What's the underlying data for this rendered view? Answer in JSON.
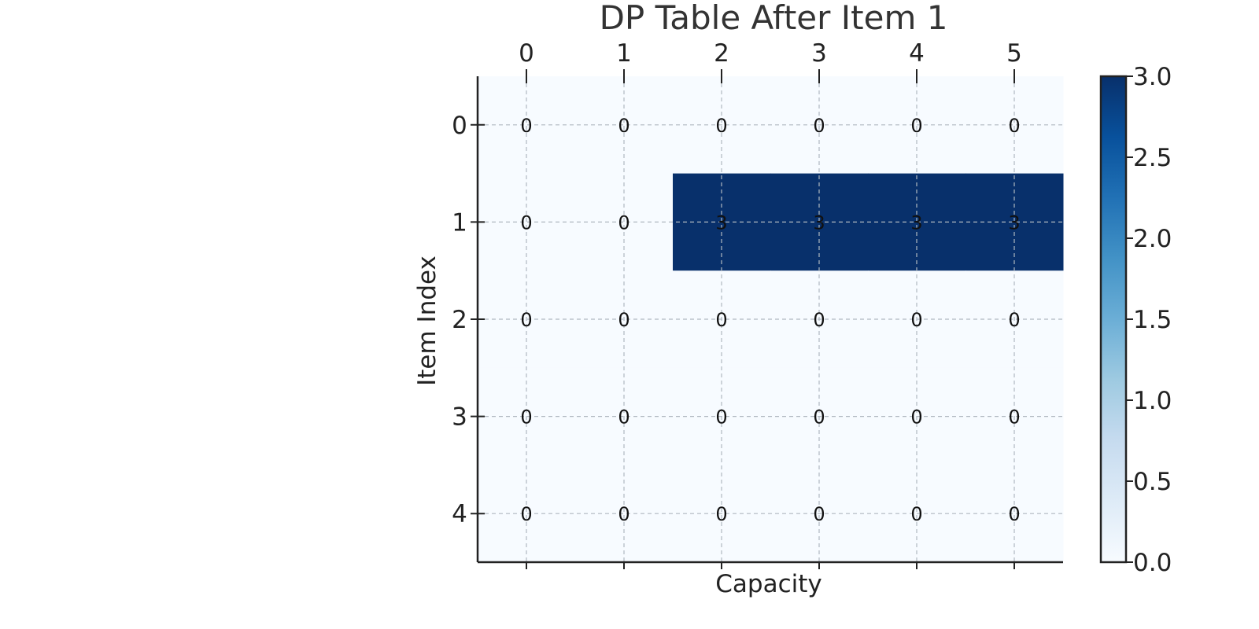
{
  "chart_data": {
    "type": "heatmap",
    "title": "DP Table After Item 1",
    "xlabel": "Capacity",
    "ylabel": "Item Index",
    "x_categories": [
      "0",
      "1",
      "2",
      "3",
      "4",
      "5"
    ],
    "y_categories": [
      "0",
      "1",
      "2",
      "3",
      "4"
    ],
    "values": [
      [
        0,
        0,
        0,
        0,
        0,
        0
      ],
      [
        0,
        0,
        3,
        3,
        3,
        3
      ],
      [
        0,
        0,
        0,
        0,
        0,
        0
      ],
      [
        0,
        0,
        0,
        0,
        0,
        0
      ],
      [
        0,
        0,
        0,
        0,
        0,
        0
      ]
    ],
    "x_tick_position": "top",
    "colormap": "Blues",
    "color_low": "#f7fbff",
    "color_high": "#08306b",
    "vmin": 0,
    "vmax": 3,
    "colorbar_ticks": [
      "0.0",
      "0.5",
      "1.0",
      "1.5",
      "2.0",
      "2.5",
      "3.0"
    ],
    "grid": true,
    "grid_style": "dashed"
  }
}
